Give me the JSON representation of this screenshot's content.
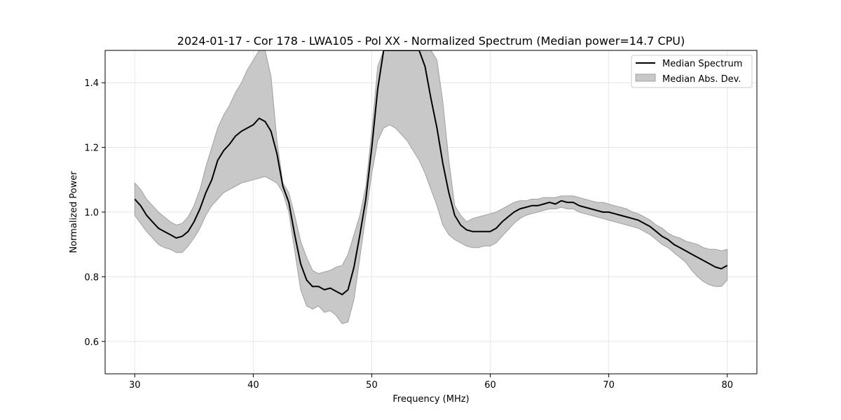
{
  "chart_data": {
    "type": "line",
    "title": "2024-01-17 - Cor 178 - LWA105 - Pol XX - Normalized Spectrum (Median power=14.7 CPU)",
    "xlabel": "Frequency (MHz)",
    "ylabel": "Normalized Power",
    "xlim": [
      27.5,
      82.5
    ],
    "ylim": [
      0.5,
      1.5
    ],
    "xticks": [
      30,
      40,
      50,
      60,
      70,
      80
    ],
    "yticks": [
      0.6,
      0.8,
      1.0,
      1.2,
      1.4
    ],
    "ytick_labels": [
      "0.6",
      "0.8",
      "1.0",
      "1.2",
      "1.4"
    ],
    "grid": true,
    "legend_position": "top-right",
    "legend": [
      "Median Spectrum",
      "Median Abs. Dev."
    ],
    "colors": {
      "median": "#000000",
      "band_fill": "#c8c8c8",
      "band_edge": "#a0a0a0",
      "grid": "#e6e6e6"
    },
    "series": [
      {
        "name": "Median Spectrum",
        "x": [
          30,
          30.5,
          31,
          31.5,
          32,
          32.5,
          33,
          33.5,
          34,
          34.5,
          35,
          35.5,
          36,
          36.5,
          37,
          37.5,
          38,
          38.5,
          39,
          39.5,
          40,
          40.5,
          41,
          41.5,
          42,
          42.5,
          43,
          43.5,
          44,
          44.5,
          45,
          45.5,
          46,
          46.5,
          47,
          47.5,
          48,
          48.5,
          49,
          49.5,
          50,
          50.5,
          51,
          51.5,
          52,
          52.5,
          53,
          53.5,
          54,
          54.5,
          55,
          55.5,
          56,
          56.5,
          57,
          57.5,
          58,
          58.5,
          59,
          59.5,
          60,
          60.5,
          61,
          61.5,
          62,
          62.5,
          63,
          63.5,
          64,
          64.5,
          65,
          65.5,
          66,
          66.5,
          67,
          67.5,
          68,
          68.5,
          69,
          69.5,
          70,
          70.5,
          71,
          71.5,
          72,
          72.5,
          73,
          73.5,
          74,
          74.5,
          75,
          75.5,
          76,
          76.5,
          77,
          77.5,
          78,
          78.5,
          79,
          79.5,
          80
        ],
        "values": [
          1.04,
          1.02,
          0.99,
          0.97,
          0.95,
          0.94,
          0.93,
          0.92,
          0.925,
          0.94,
          0.97,
          1.01,
          1.06,
          1.1,
          1.16,
          1.19,
          1.21,
          1.235,
          1.25,
          1.26,
          1.27,
          1.29,
          1.28,
          1.25,
          1.18,
          1.08,
          1.03,
          0.93,
          0.84,
          0.79,
          0.77,
          0.77,
          0.76,
          0.765,
          0.755,
          0.745,
          0.76,
          0.83,
          0.93,
          1.04,
          1.2,
          1.38,
          1.5,
          1.5,
          1.5,
          1.5,
          1.5,
          1.5,
          1.5,
          1.45,
          1.35,
          1.26,
          1.15,
          1.06,
          0.99,
          0.96,
          0.945,
          0.94,
          0.94,
          0.94,
          0.94,
          0.95,
          0.97,
          0.985,
          1.0,
          1.01,
          1.015,
          1.02,
          1.02,
          1.025,
          1.03,
          1.025,
          1.035,
          1.03,
          1.03,
          1.02,
          1.015,
          1.01,
          1.005,
          1.0,
          1.0,
          0.995,
          0.99,
          0.985,
          0.98,
          0.975,
          0.965,
          0.955,
          0.94,
          0.925,
          0.915,
          0.9,
          0.89,
          0.88,
          0.87,
          0.86,
          0.85,
          0.84,
          0.83,
          0.825,
          0.835
        ]
      },
      {
        "name": "Median Abs. Dev.",
        "x": [
          30,
          30.5,
          31,
          31.5,
          32,
          32.5,
          33,
          33.5,
          34,
          34.5,
          35,
          35.5,
          36,
          36.5,
          37,
          37.5,
          38,
          38.5,
          39,
          39.5,
          40,
          40.5,
          41,
          41.5,
          42,
          42.5,
          43,
          43.5,
          44,
          44.5,
          45,
          45.5,
          46,
          46.5,
          47,
          47.5,
          48,
          48.5,
          49,
          49.5,
          50,
          50.5,
          51,
          51.5,
          52,
          52.5,
          53,
          53.5,
          54,
          54.5,
          55,
          55.5,
          56,
          56.5,
          57,
          57.5,
          58,
          58.5,
          59,
          59.5,
          60,
          60.5,
          61,
          61.5,
          62,
          62.5,
          63,
          63.5,
          64,
          64.5,
          65,
          65.5,
          66,
          66.5,
          67,
          67.5,
          68,
          68.5,
          69,
          69.5,
          70,
          70.5,
          71,
          71.5,
          72,
          72.5,
          73,
          73.5,
          74,
          74.5,
          75,
          75.5,
          76,
          76.5,
          77,
          77.5,
          78,
          78.5,
          79,
          79.5,
          80
        ],
        "upper": [
          1.09,
          1.07,
          1.04,
          1.02,
          1.0,
          0.985,
          0.97,
          0.96,
          0.965,
          0.985,
          1.02,
          1.07,
          1.14,
          1.2,
          1.26,
          1.3,
          1.33,
          1.37,
          1.4,
          1.44,
          1.47,
          1.5,
          1.5,
          1.42,
          1.22,
          1.09,
          1.06,
          0.99,
          0.91,
          0.86,
          0.82,
          0.81,
          0.815,
          0.82,
          0.83,
          0.835,
          0.87,
          0.93,
          0.99,
          1.08,
          1.25,
          1.45,
          1.5,
          1.5,
          1.5,
          1.5,
          1.5,
          1.5,
          1.5,
          1.5,
          1.5,
          1.47,
          1.34,
          1.16,
          1.02,
          0.99,
          0.97,
          0.98,
          0.985,
          0.99,
          0.995,
          1.0,
          1.01,
          1.02,
          1.03,
          1.035,
          1.035,
          1.04,
          1.04,
          1.045,
          1.045,
          1.045,
          1.05,
          1.05,
          1.05,
          1.045,
          1.04,
          1.035,
          1.03,
          1.03,
          1.025,
          1.02,
          1.015,
          1.01,
          1.0,
          0.995,
          0.985,
          0.975,
          0.96,
          0.95,
          0.935,
          0.925,
          0.92,
          0.91,
          0.905,
          0.9,
          0.89,
          0.885,
          0.885,
          0.88,
          0.885
        ],
        "lower": [
          0.99,
          0.965,
          0.94,
          0.92,
          0.9,
          0.89,
          0.885,
          0.875,
          0.875,
          0.895,
          0.92,
          0.95,
          0.99,
          1.02,
          1.04,
          1.06,
          1.07,
          1.08,
          1.09,
          1.095,
          1.1,
          1.105,
          1.11,
          1.1,
          1.09,
          1.06,
          1.0,
          0.88,
          0.76,
          0.71,
          0.7,
          0.71,
          0.69,
          0.695,
          0.68,
          0.655,
          0.66,
          0.73,
          0.86,
          0.99,
          1.12,
          1.22,
          1.26,
          1.27,
          1.26,
          1.24,
          1.22,
          1.19,
          1.16,
          1.12,
          1.07,
          1.02,
          0.96,
          0.93,
          0.915,
          0.905,
          0.895,
          0.89,
          0.89,
          0.895,
          0.895,
          0.905,
          0.925,
          0.945,
          0.965,
          0.98,
          0.99,
          0.995,
          1.0,
          1.005,
          1.01,
          1.01,
          1.015,
          1.01,
          1.01,
          1.0,
          0.995,
          0.99,
          0.985,
          0.98,
          0.975,
          0.97,
          0.965,
          0.96,
          0.955,
          0.95,
          0.94,
          0.93,
          0.915,
          0.9,
          0.89,
          0.875,
          0.86,
          0.845,
          0.82,
          0.8,
          0.785,
          0.775,
          0.77,
          0.77,
          0.79
        ]
      }
    ]
  }
}
